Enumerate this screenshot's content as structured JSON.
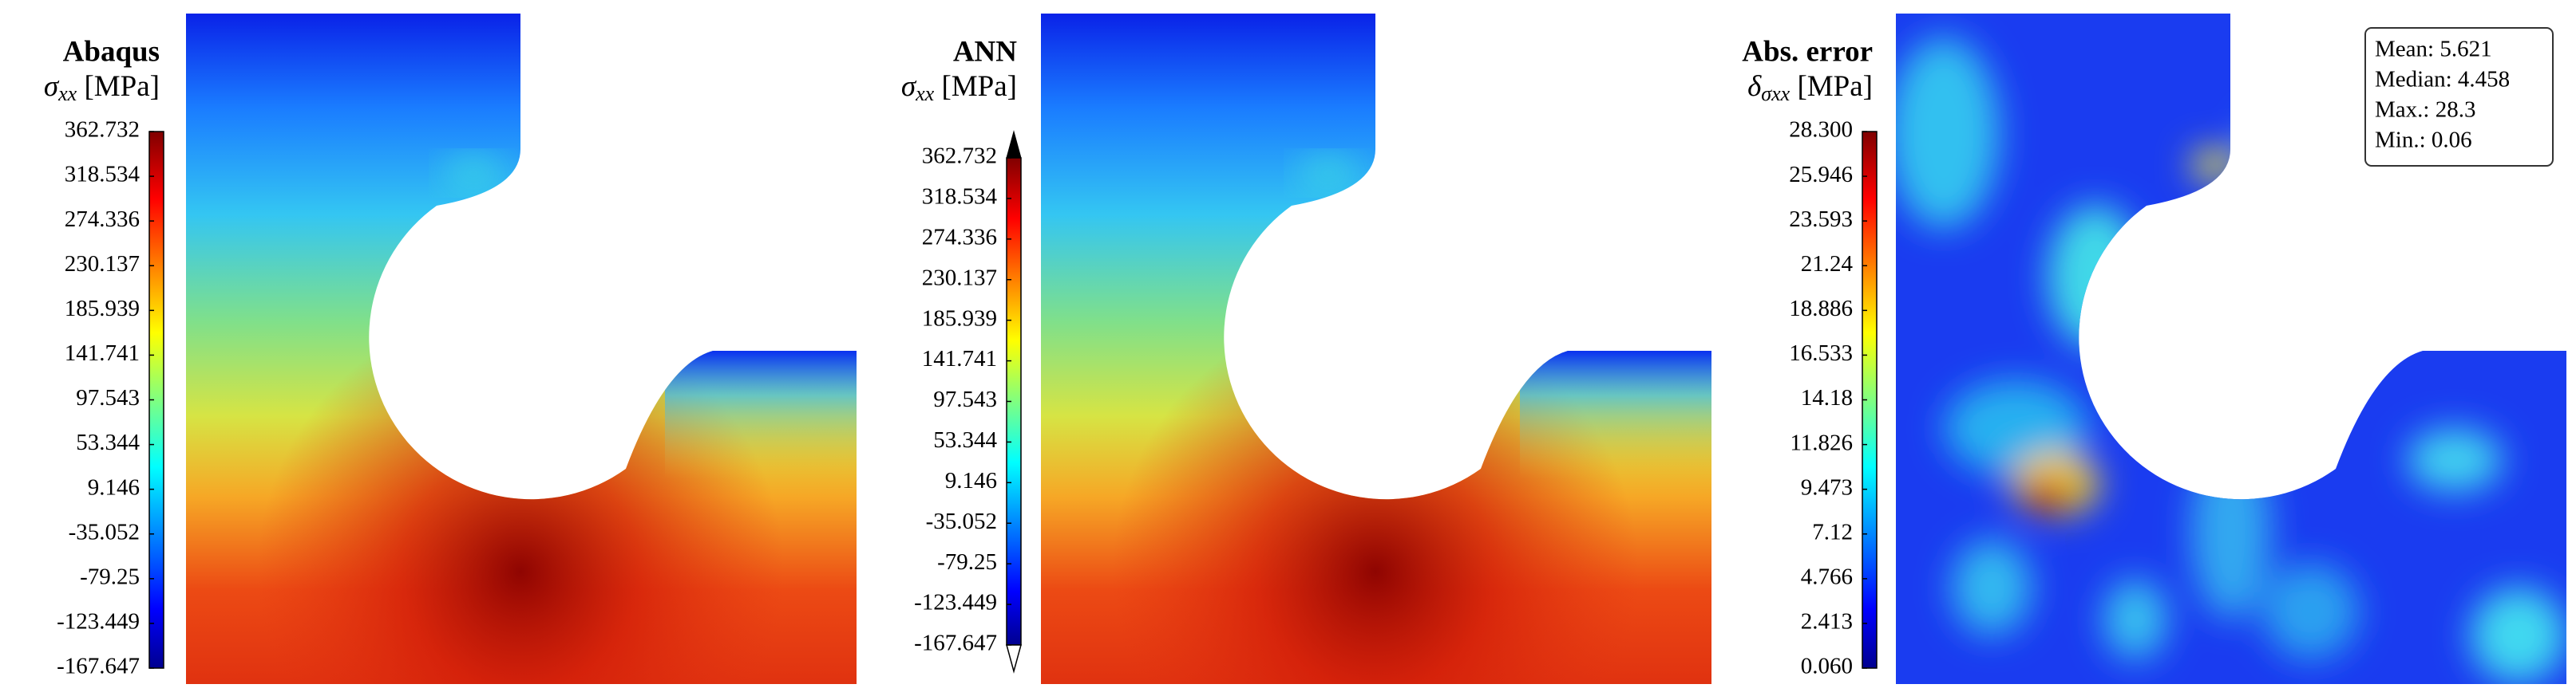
{
  "chart_data": [
    {
      "type": "heatmap",
      "title": "Abaqus",
      "colorbar_label": {
        "symbol": "σ",
        "subscript": "xx",
        "unit": "[MPa]"
      },
      "colormap": "jet",
      "clim": [
        -167.647,
        362.732
      ],
      "extend": "neither",
      "ticks": [
        362.732,
        318.534,
        274.336,
        230.137,
        185.939,
        141.741,
        97.543,
        53.344,
        9.146,
        -35.052,
        -79.25,
        -123.449,
        -167.647
      ]
    },
    {
      "type": "heatmap",
      "title": "ANN",
      "colorbar_label": {
        "symbol": "σ",
        "subscript": "xx",
        "unit": "[MPa]"
      },
      "colormap": "jet",
      "clim": [
        -167.647,
        362.732
      ],
      "extend": "both",
      "ticks": [
        362.732,
        318.534,
        274.336,
        230.137,
        185.939,
        141.741,
        97.543,
        53.344,
        9.146,
        -35.052,
        -79.25,
        -123.449,
        -167.647
      ]
    },
    {
      "type": "heatmap",
      "title": "Abs. error",
      "colorbar_label": {
        "symbol": "δ",
        "subscript": "σxx",
        "unit": "[MPa]"
      },
      "colormap": "jet",
      "clim": [
        0.06,
        28.3
      ],
      "extend": "neither",
      "ticks": [
        {
          "value": 28.3,
          "label": "28.300"
        },
        25.946,
        23.593,
        21.24,
        18.886,
        16.533,
        14.18,
        11.826,
        9.473,
        7.12,
        4.766,
        2.413,
        {
          "value": 0.06,
          "label": "0.060"
        }
      ],
      "stats": [
        "Mean: 5.621",
        "Median: 4.458",
        "Max.: 28.3",
        "Min.: 0.06"
      ]
    }
  ]
}
